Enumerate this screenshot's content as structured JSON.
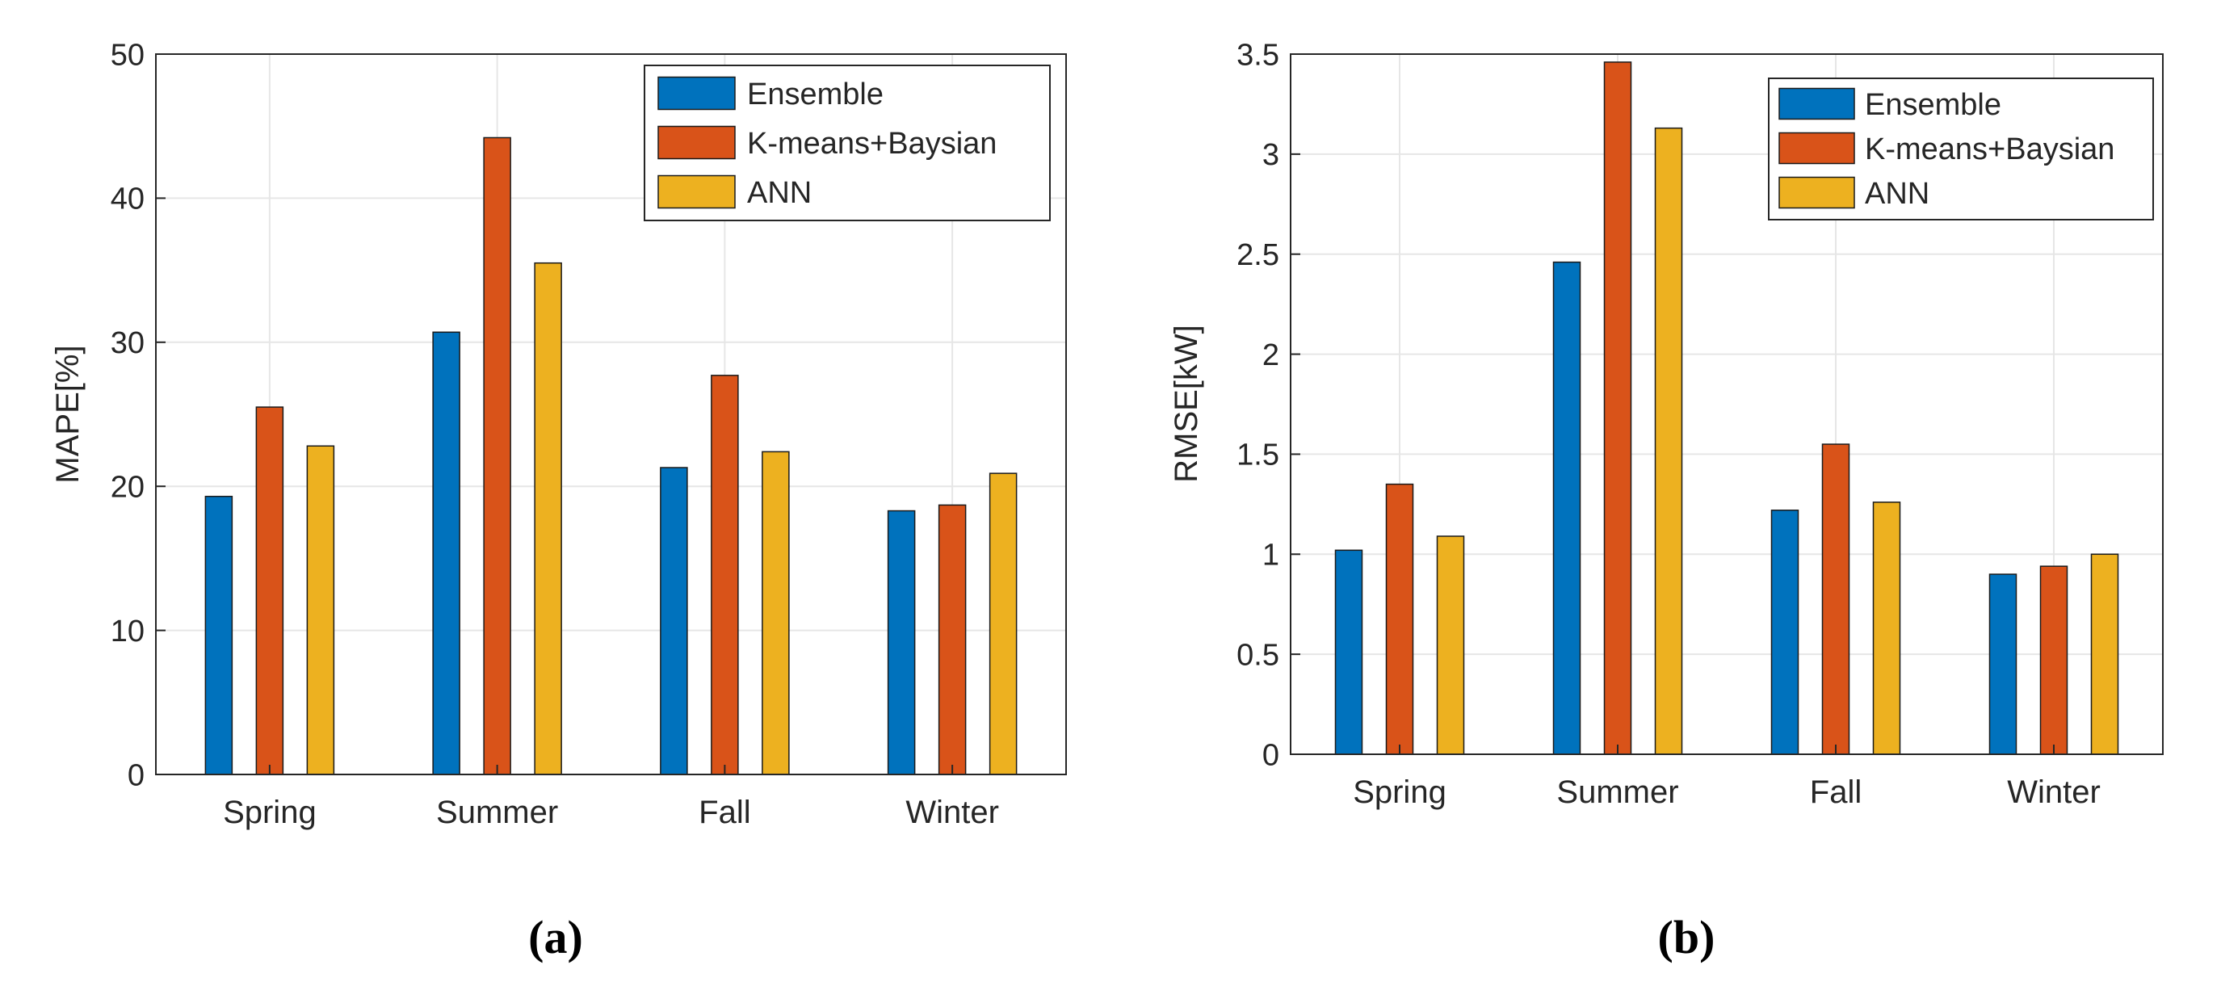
{
  "colors": {
    "ensemble": "#0072BD",
    "kmeans": "#D95319",
    "ann": "#EDB120"
  },
  "chart_data": [
    {
      "type": "bar",
      "panel_label": "(a)",
      "title": "",
      "xlabel": "",
      "ylabel": "MAPE[%]",
      "categories": [
        "Spring",
        "Summer",
        "Fall",
        "Winter"
      ],
      "ylim": [
        0,
        50
      ],
      "yticks": [
        0,
        10,
        20,
        30,
        40,
        50
      ],
      "ytick_labels": [
        "0",
        "10",
        "20",
        "30",
        "40",
        "50"
      ],
      "grid": true,
      "legend_position": "top-right",
      "series": [
        {
          "name": "Ensemble",
          "color_key": "ensemble",
          "values": [
            19.3,
            30.7,
            21.3,
            18.3
          ]
        },
        {
          "name": "K-means+Baysian",
          "color_key": "kmeans",
          "values": [
            25.5,
            44.2,
            27.7,
            18.7
          ]
        },
        {
          "name": "ANN",
          "color_key": "ann",
          "values": [
            22.8,
            35.5,
            22.4,
            20.9
          ]
        }
      ]
    },
    {
      "type": "bar",
      "panel_label": "(b)",
      "title": "",
      "xlabel": "",
      "ylabel": "RMSE[kW]",
      "categories": [
        "Spring",
        "Summer",
        "Fall",
        "Winter"
      ],
      "ylim": [
        0,
        3.5
      ],
      "yticks": [
        0,
        0.5,
        1,
        1.5,
        2,
        2.5,
        3,
        3.5
      ],
      "ytick_labels": [
        "0",
        "0.5",
        "1",
        "1.5",
        "2",
        "2.5",
        "3",
        "3.5"
      ],
      "grid": true,
      "legend_position": "top-right",
      "series": [
        {
          "name": "Ensemble",
          "color_key": "ensemble",
          "values": [
            1.02,
            2.46,
            1.22,
            0.9
          ]
        },
        {
          "name": "K-means+Baysian",
          "color_key": "kmeans",
          "values": [
            1.35,
            3.46,
            1.55,
            0.94
          ]
        },
        {
          "name": "ANN",
          "color_key": "ann",
          "values": [
            1.09,
            3.13,
            1.26,
            1.0
          ]
        }
      ]
    }
  ]
}
